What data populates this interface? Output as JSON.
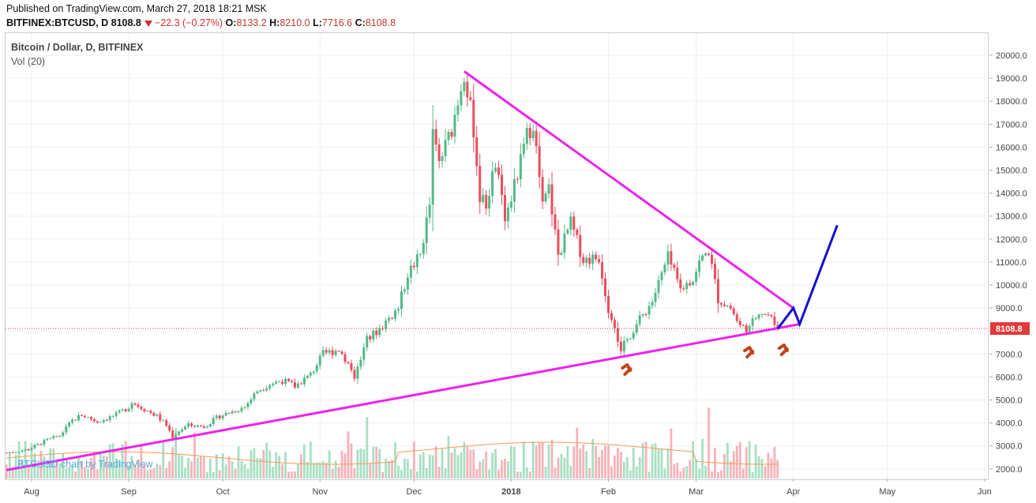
{
  "header": {
    "published": "Published on TradingView.com, March 27, 2018 18:21 MSK",
    "symbol": "BITFINEX:BTCUSD, D",
    "last": "8108.8",
    "change": "−22.3 (−0.27%)",
    "o_label": "O:",
    "o": "8133.2",
    "h_label": "H:",
    "h": "8210.0",
    "l_label": "L:",
    "l": "7716.6",
    "c_label": "C:",
    "c": "8108.8"
  },
  "legend": {
    "title": "Bitcoin / Dollar, D, BITFINEX",
    "vol": "Vol (20)"
  },
  "watermark": "BTCUSD chart by TradingView",
  "chart_data": {
    "type": "candlestick",
    "title": "Bitcoin / Dollar, D, BITFINEX",
    "y_ticks": [
      "20000.0",
      "19000.0",
      "18000.0",
      "17000.0",
      "16000.0",
      "15000.0",
      "14000.0",
      "13000.0",
      "12000.0",
      "11000.0",
      "10000.0",
      "9000.0",
      "8000.0",
      "7000.0",
      "6000.0",
      "5000.0",
      "4000.0",
      "3000.0",
      "2000.0"
    ],
    "ylim": [
      1700,
      20600
    ],
    "x_ticks": [
      "Aug",
      "Sep",
      "Oct",
      "Nov",
      "Dec",
      "2018",
      "Feb",
      "Mar",
      "Apr",
      "May",
      "Jun"
    ],
    "last_price_label": "8108.8",
    "last_price": 8108.8,
    "colors": {
      "up": "#53b987",
      "down": "#eb4d5c",
      "trend": "#ee22ee",
      "projection": "#1111cc",
      "arrow": "#c0441c",
      "vol_ma": "#f59a56",
      "last": "#e03a3a"
    },
    "price_path": [
      [
        "2017-07-24",
        2700
      ],
      [
        "2017-07-31",
        2850
      ],
      [
        "2017-08-06",
        3250
      ],
      [
        "2017-08-10",
        3450
      ],
      [
        "2017-08-14",
        4100
      ],
      [
        "2017-08-17",
        4350
      ],
      [
        "2017-08-22",
        4050
      ],
      [
        "2017-08-28",
        4350
      ],
      [
        "2017-09-01",
        4700
      ],
      [
        "2017-09-02",
        4900
      ],
      [
        "2017-09-06",
        4600
      ],
      [
        "2017-09-10",
        4300
      ],
      [
        "2017-09-13",
        3900
      ],
      [
        "2017-09-15",
        3400
      ],
      [
        "2017-09-17",
        3650
      ],
      [
        "2017-09-20",
        3900
      ],
      [
        "2017-09-25",
        3850
      ],
      [
        "2017-09-30",
        4300
      ],
      [
        "2017-10-08",
        4700
      ],
      [
        "2017-10-12",
        5400
      ],
      [
        "2017-10-16",
        5700
      ],
      [
        "2017-10-20",
        5850
      ],
      [
        "2017-10-24",
        5600
      ],
      [
        "2017-10-29",
        6100
      ],
      [
        "2017-11-02",
        7000
      ],
      [
        "2017-11-07",
        7200
      ],
      [
        "2017-11-10",
        6600
      ],
      [
        "2017-11-12",
        6000
      ],
      [
        "2017-11-16",
        7600
      ],
      [
        "2017-11-20",
        8100
      ],
      [
        "2017-11-26",
        9000
      ],
      [
        "2017-11-29",
        10500
      ],
      [
        "2017-12-03",
        11300
      ],
      [
        "2017-12-06",
        13500
      ],
      [
        "2017-12-07",
        16500
      ],
      [
        "2017-12-09",
        15300
      ],
      [
        "2017-12-13",
        16800
      ],
      [
        "2017-12-17",
        19300
      ],
      [
        "2017-12-20",
        16800
      ],
      [
        "2017-12-22",
        13800
      ],
      [
        "2017-12-24",
        13500
      ],
      [
        "2017-12-27",
        15300
      ],
      [
        "2017-12-30",
        12800
      ],
      [
        "2018-01-03",
        14800
      ],
      [
        "2018-01-06",
        16500
      ],
      [
        "2018-01-08",
        17100
      ],
      [
        "2018-01-11",
        13400
      ],
      [
        "2018-01-13",
        14200
      ],
      [
        "2018-01-16",
        11300
      ],
      [
        "2018-01-20",
        12700
      ],
      [
        "2018-01-24",
        11100
      ],
      [
        "2018-01-29",
        11200
      ],
      [
        "2018-02-01",
        9000
      ],
      [
        "2018-02-03",
        8300
      ],
      [
        "2018-02-05",
        7000
      ],
      [
        "2018-02-06",
        7400
      ],
      [
        "2018-02-10",
        8300
      ],
      [
        "2018-02-15",
        9300
      ],
      [
        "2018-02-20",
        11200
      ],
      [
        "2018-02-24",
        9800
      ],
      [
        "2018-02-28",
        10300
      ],
      [
        "2018-03-02",
        11000
      ],
      [
        "2018-03-05",
        11500
      ],
      [
        "2018-03-08",
        9400
      ],
      [
        "2018-03-12",
        9000
      ],
      [
        "2018-03-15",
        8200
      ],
      [
        "2018-03-18",
        8100
      ],
      [
        "2018-03-21",
        8900
      ],
      [
        "2018-03-24",
        8700
      ],
      [
        "2018-03-27",
        8108.8
      ]
    ],
    "trendlines": [
      {
        "name": "descending",
        "from": [
          "2017-12-17",
          19300
        ],
        "to": [
          "2018-04-01",
          9000
        ]
      },
      {
        "name": "ascending",
        "from": [
          "2017-07-24",
          1950
        ],
        "to": [
          "2018-04-03",
          8300
        ]
      }
    ],
    "projection": [
      [
        "2018-03-27",
        8100
      ],
      [
        "2018-04-01",
        9000
      ],
      [
        "2018-04-03",
        8300
      ],
      [
        "2018-04-15",
        12600
      ]
    ]
  }
}
